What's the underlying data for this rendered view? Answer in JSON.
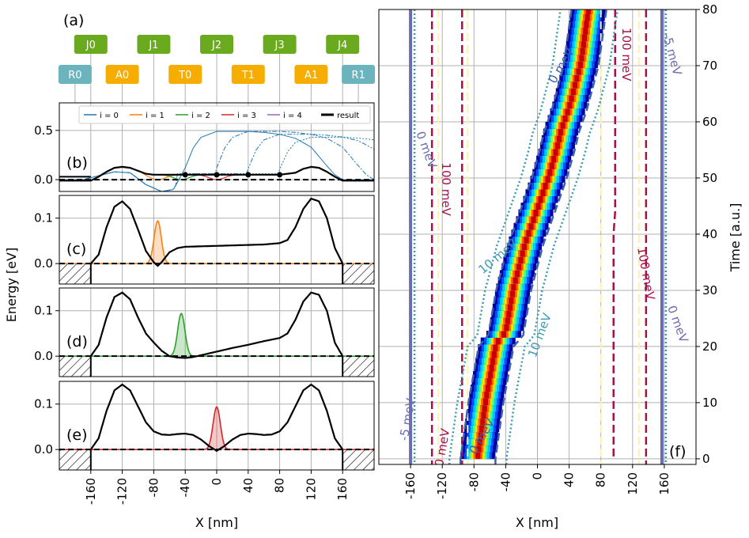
{
  "chart_data": [
    {
      "panel": "(a)",
      "type": "diagram",
      "gate_labels": [
        "J0",
        "J1",
        "J2",
        "J3",
        "J4"
      ],
      "gate_x_nm": [
        -160,
        -80,
        0,
        80,
        160
      ],
      "dot_labels": [
        "R0",
        "A0",
        "T0",
        "T1",
        "A1",
        "R1"
      ],
      "dot_x_nm": [
        -180,
        -120,
        -40,
        40,
        120,
        180
      ],
      "colors": {
        "gate": "#6aaa1e",
        "reservoir": "#6cb4bd",
        "dot": "#f6ad00"
      }
    },
    {
      "panel": "(b)",
      "type": "line",
      "xlabel": "X [nm]",
      "ylabel": "Energy [eV]",
      "xlim": [
        -200,
        200
      ],
      "ylim": [
        -0.12,
        0.78
      ],
      "yticks": [
        "0.0",
        "0.5"
      ],
      "legend": {
        "placement": "top",
        "entries": [
          "$i = 0$",
          "$i = 1$",
          "$i = 2$",
          "$i = 3$",
          "$i = 4$",
          "result"
        ],
        "labels": [
          "i = 0",
          "i = 1",
          "i = 2",
          "i = 3",
          "i = 4",
          "result"
        ],
        "colors": [
          "#1f77b4",
          "#ff7f0e",
          "#2ca02c",
          "#d62728",
          "#9467bd",
          "#000000"
        ]
      },
      "marker_x": [
        -40,
        0,
        40,
        80
      ],
      "series": [
        {
          "name": "i = 0",
          "x": [
            -200,
            -170,
            -150,
            -130,
            -110,
            -90,
            -70,
            -55,
            -40,
            -30,
            -20,
            0,
            20,
            40,
            60,
            80,
            100,
            120,
            140,
            150,
            160,
            170,
            200
          ],
          "values": [
            0,
            0,
            0.04,
            0.08,
            0.07,
            -0.05,
            -0.12,
            -0.1,
            0.12,
            0.32,
            0.43,
            0.49,
            0.49,
            0.49,
            0.48,
            0.46,
            0.42,
            0.33,
            0.14,
            0.05,
            0,
            0,
            0
          ]
        },
        {
          "name": "result",
          "x": [
            -200,
            -160,
            -150,
            -140,
            -130,
            -120,
            -110,
            -100,
            -90,
            -80,
            -70,
            -60,
            -40,
            0,
            40,
            80,
            100,
            110,
            120,
            130,
            140,
            150,
            160,
            200
          ],
          "values": [
            -0.01,
            -0.01,
            0.03,
            0.08,
            0.12,
            0.13,
            0.12,
            0.09,
            0.06,
            0.05,
            0.05,
            0.05,
            0.05,
            0.05,
            0.05,
            0.05,
            0.07,
            0.11,
            0.13,
            0.12,
            0.08,
            0.03,
            -0.01,
            -0.01
          ]
        }
      ]
    },
    {
      "panel": "(c)",
      "type": "line",
      "ylim": [
        -0.045,
        0.15
      ],
      "yticks": [
        "0.0",
        "0.1"
      ],
      "potential": {
        "x": [
          -160,
          -150,
          -140,
          -130,
          -120,
          -110,
          -100,
          -90,
          -80,
          -75,
          -70,
          -60,
          -50,
          -40,
          -20,
          0,
          20,
          40,
          60,
          80,
          90,
          100,
          110,
          120,
          130,
          140,
          150,
          160
        ],
        "values": [
          0,
          0.02,
          0.08,
          0.125,
          0.137,
          0.12,
          0.075,
          0.028,
          0.003,
          -0.005,
          0.003,
          0.025,
          0.034,
          0.037,
          0.038,
          0.039,
          0.04,
          0.041,
          0.042,
          0.045,
          0.052,
          0.08,
          0.12,
          0.143,
          0.137,
          0.1,
          0.035,
          0
        ]
      },
      "wavefunction": {
        "center_nm": -75,
        "peak": 0.094,
        "color": "#ff7f0e"
      }
    },
    {
      "panel": "(d)",
      "type": "line",
      "ylim": [
        -0.045,
        0.15
      ],
      "yticks": [
        "0.0",
        "0.1"
      ],
      "potential": {
        "x": [
          -160,
          -150,
          -140,
          -130,
          -120,
          -110,
          -100,
          -90,
          -80,
          -70,
          -60,
          -50,
          -40,
          -30,
          -20,
          -10,
          0,
          20,
          40,
          60,
          80,
          90,
          100,
          110,
          120,
          130,
          140,
          150,
          160
        ],
        "values": [
          0,
          0.025,
          0.085,
          0.13,
          0.14,
          0.125,
          0.085,
          0.05,
          0.03,
          0.012,
          0.0,
          -0.003,
          -0.004,
          -0.002,
          0.002,
          0.006,
          0.01,
          0.018,
          0.025,
          0.033,
          0.04,
          0.05,
          0.08,
          0.12,
          0.14,
          0.135,
          0.1,
          0.03,
          0
        ]
      },
      "wavefunction": {
        "center_nm": -45,
        "peak": 0.094,
        "color": "#2ca02c"
      }
    },
    {
      "panel": "(e)",
      "type": "line",
      "ylim": [
        -0.045,
        0.15
      ],
      "yticks": [
        "0.0",
        "0.1"
      ],
      "potential": {
        "x": [
          -160,
          -150,
          -140,
          -130,
          -120,
          -110,
          -100,
          -90,
          -80,
          -70,
          -60,
          -50,
          -40,
          -30,
          -20,
          -10,
          0,
          10,
          20,
          30,
          40,
          50,
          60,
          70,
          80,
          90,
          100,
          110,
          120,
          130,
          140,
          150,
          160
        ],
        "values": [
          0,
          0.025,
          0.085,
          0.13,
          0.143,
          0.13,
          0.095,
          0.06,
          0.04,
          0.033,
          0.032,
          0.034,
          0.035,
          0.032,
          0.022,
          0.008,
          -0.003,
          0.008,
          0.022,
          0.032,
          0.035,
          0.034,
          0.032,
          0.033,
          0.04,
          0.06,
          0.095,
          0.13,
          0.143,
          0.13,
          0.085,
          0.025,
          0
        ]
      },
      "wavefunction": {
        "center_nm": 0,
        "peak": 0.094,
        "color": "#d62728"
      }
    },
    {
      "panel": "(f)",
      "type": "heatmap",
      "xlabel": "X [nm]",
      "ylabel": "Time [a.u.]",
      "xlim": [
        -200,
        200
      ],
      "ylim": [
        -1,
        80
      ],
      "xtick_values": [
        -160,
        -120,
        -80,
        -40,
        0,
        40,
        80,
        120,
        160
      ],
      "xtick_labels": [
        "-160",
        "-120",
        "-80",
        "-40",
        "0",
        "40",
        "80",
        "120",
        "160"
      ],
      "ytick_values": [
        0,
        10,
        20,
        30,
        40,
        50,
        60,
        70,
        80
      ],
      "ytick_labels": [
        "0",
        "10",
        "20",
        "30",
        "40",
        "50",
        "60",
        "70",
        "80"
      ],
      "trajectory": {
        "t": [
          0,
          10,
          20,
          22,
          30,
          38,
          42,
          50,
          55,
          58,
          62,
          70,
          80
        ],
        "x": [
          -75,
          -65,
          -52,
          -40,
          -30,
          -15,
          -5,
          15,
          25,
          30,
          40,
          55,
          65
        ]
      },
      "contour_labels": [
        {
          "text": "0 meV",
          "color": "#6b6bb0",
          "x_nm": -140,
          "t": 55,
          "rotate": 70
        },
        {
          "text": "100 meV",
          "color": "#a8104a",
          "x_nm": -115,
          "t": 48,
          "rotate": 90
        },
        {
          "text": "0 meV",
          "color": "#3a62b0",
          "x_nm": 30,
          "t": 70,
          "rotate": -60
        },
        {
          "text": "100 meV",
          "color": "#a8104a",
          "x_nm": 112,
          "t": 72,
          "rotate": 90
        },
        {
          "text": "-5 meV",
          "color": "#6b6bb0",
          "x_nm": 170,
          "t": 72,
          "rotate": 75
        },
        {
          "text": "10 meV",
          "color": "#3b9ab0",
          "x_nm": -50,
          "t": 36,
          "rotate": -40
        },
        {
          "text": "100 meV",
          "color": "#a8104a",
          "x_nm": 137,
          "t": 33,
          "rotate": 80
        },
        {
          "text": "0 meV",
          "color": "#6b6bb0",
          "x_nm": 177,
          "t": 24,
          "rotate": 70
        },
        {
          "text": "10 meV",
          "color": "#3b9ab0",
          "x_nm": 3,
          "t": 22,
          "rotate": -70
        },
        {
          "text": "-5 meV",
          "color": "#6b6bb0",
          "x_nm": -164,
          "t": 7,
          "rotate": -80
        },
        {
          "text": "0 meV",
          "color": "#a8104a",
          "x_nm": -120,
          "t": 2,
          "rotate": -80
        },
        {
          "text": "0 meV",
          "color": "#3a62b0",
          "x_nm": -70,
          "t": 4,
          "rotate": -60
        }
      ]
    }
  ],
  "labels": {
    "panel_a": "(a)",
    "panel_b": "(b)",
    "panel_c": "(c)",
    "panel_d": "(d)",
    "panel_e": "(e)",
    "panel_f": "(f)",
    "left_xlabel": "X [nm]",
    "left_ylabel": "Energy [eV]",
    "right_xlabel": "X [nm]",
    "right_ylabel": "Time [a.u.]"
  }
}
